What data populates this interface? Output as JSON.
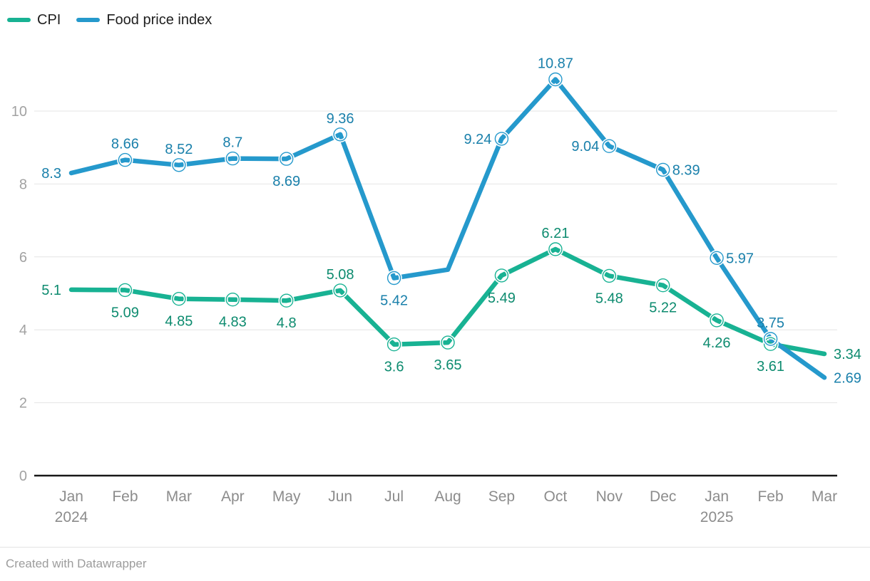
{
  "footer": {
    "text": "Created with Datawrapper"
  },
  "chart_data": {
    "type": "line",
    "title": "",
    "xlabel": "",
    "ylabel": "",
    "grid": true,
    "legend_position": "top-left",
    "categories": [
      "Jan",
      "Feb",
      "Mar",
      "Apr",
      "May",
      "Jun",
      "Jul",
      "Aug",
      "Sep",
      "Oct",
      "Nov",
      "Dec",
      "Jan",
      "Feb",
      "Mar"
    ],
    "year_labels": [
      {
        "index": 0,
        "text": "2024"
      },
      {
        "index": 12,
        "text": "2025"
      }
    ],
    "y_axis": {
      "ticks": [
        0,
        2,
        4,
        6,
        8,
        10
      ],
      "ylim": [
        0,
        11.4
      ]
    },
    "series": [
      {
        "name": "CPI",
        "color": "#18b293",
        "label_color": "#0d8b6f",
        "values": [
          5.1,
          5.09,
          4.85,
          4.83,
          4.8,
          5.08,
          3.6,
          3.65,
          5.49,
          6.21,
          5.48,
          5.22,
          4.26,
          3.61,
          3.34
        ],
        "labels": [
          "5.1",
          "5.09",
          "4.85",
          "4.83",
          "4.8",
          "5.08",
          "3.6",
          "3.65",
          "5.49",
          "6.21",
          "5.48",
          "5.22",
          "4.26",
          "3.61",
          "3.34"
        ],
        "label_positions": [
          "left",
          "below",
          "below",
          "below",
          "below",
          "above",
          "below",
          "below",
          "below",
          "above",
          "below",
          "below",
          "below",
          "below",
          "right"
        ]
      },
      {
        "name": "Food price index",
        "color": "#2599cc",
        "label_color": "#1a80ab",
        "values": [
          8.3,
          8.66,
          8.52,
          8.7,
          8.69,
          9.36,
          5.42,
          5.65,
          9.24,
          10.87,
          9.04,
          8.39,
          5.97,
          3.75,
          2.69
        ],
        "labels": [
          "8.3",
          "8.66",
          "8.52",
          "8.7",
          "8.69",
          "9.36",
          "5.42",
          "",
          "9.24",
          "10.87",
          "9.04",
          "8.39",
          "5.97",
          "3.75",
          "2.69"
        ],
        "label_positions": [
          "left",
          "above",
          "above",
          "above",
          "below",
          "above",
          "below",
          "none",
          "left",
          "above",
          "left",
          "right",
          "right",
          "above",
          "right"
        ]
      }
    ]
  }
}
